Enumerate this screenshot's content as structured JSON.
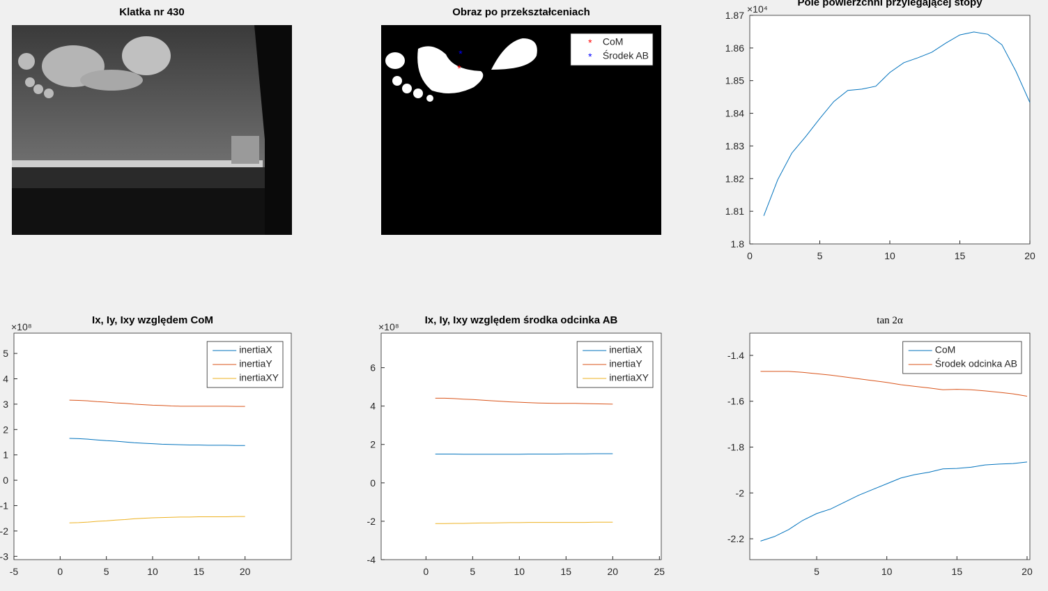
{
  "chart_data": [
    {
      "type": "image",
      "title": "Klatka nr 430"
    },
    {
      "type": "image",
      "title": "Obraz po przekształceniach",
      "legend": "northeast",
      "series": [
        {
          "name": "CoM",
          "color": "#ff0000"
        },
        {
          "name": "Środek AB",
          "color": "#0000ff"
        }
      ]
    },
    {
      "type": "line",
      "title": "Pole powierzchni przylegającej stopy",
      "y_exponent": "×10⁴",
      "x": [
        1,
        2,
        3,
        4,
        5,
        6,
        7,
        8,
        9,
        10,
        11,
        12,
        13,
        14,
        15,
        16,
        17,
        18,
        19,
        20
      ],
      "values": [
        1.8086,
        1.8197,
        1.8278,
        1.8329,
        1.8384,
        1.8436,
        1.847,
        1.8474,
        1.8483,
        1.8525,
        1.8555,
        1.857,
        1.8587,
        1.8615,
        1.864,
        1.8649,
        1.8642,
        1.861,
        1.8529,
        1.8433
      ],
      "color": "#0072bd",
      "xlim": [
        0,
        20
      ],
      "ylim": [
        1.8,
        1.87
      ],
      "xticks": [
        0,
        5,
        10,
        15,
        20
      ],
      "yticks": [
        1.8,
        1.81,
        1.82,
        1.83,
        1.84,
        1.85,
        1.86,
        1.87
      ]
    },
    {
      "type": "line",
      "title": "Ix, Iy, Ixy względem CoM",
      "y_exponent": "×10⁸",
      "legend": "northeast",
      "x": [
        1,
        2,
        3,
        4,
        5,
        6,
        7,
        8,
        9,
        10,
        11,
        12,
        13,
        14,
        15,
        16,
        17,
        18,
        19,
        20
      ],
      "series": [
        {
          "name": "inertiaX",
          "color": "#0072bd",
          "values": [
            1.65,
            1.64,
            1.62,
            1.59,
            1.56,
            1.54,
            1.51,
            1.48,
            1.46,
            1.44,
            1.42,
            1.41,
            1.4,
            1.39,
            1.39,
            1.38,
            1.38,
            1.38,
            1.37,
            1.37
          ]
        },
        {
          "name": "inertiaY",
          "color": "#d95319",
          "values": [
            3.16,
            3.15,
            3.13,
            3.1,
            3.08,
            3.05,
            3.03,
            3.0,
            2.98,
            2.96,
            2.95,
            2.93,
            2.92,
            2.92,
            2.92,
            2.92,
            2.92,
            2.92,
            2.91,
            2.91
          ]
        },
        {
          "name": "inertiaXY",
          "color": "#edb120",
          "values": [
            -1.68,
            -1.67,
            -1.65,
            -1.62,
            -1.6,
            -1.57,
            -1.55,
            -1.52,
            -1.5,
            -1.48,
            -1.47,
            -1.46,
            -1.45,
            -1.45,
            -1.44,
            -1.44,
            -1.44,
            -1.44,
            -1.43,
            -1.43
          ]
        }
      ],
      "xlim": [
        -5,
        25
      ],
      "ylim": [
        -3.13,
        5.8
      ],
      "xticks": [
        -5,
        0,
        5,
        10,
        15,
        20
      ],
      "yticks": [
        -3,
        -2,
        -1,
        0,
        1,
        2,
        3,
        4,
        5
      ]
    },
    {
      "type": "line",
      "title": "Ix, Iy, Ixy względem środka odcinka AB",
      "y_exponent": "×10⁸",
      "legend": "northeast",
      "x": [
        1,
        2,
        3,
        4,
        5,
        6,
        7,
        8,
        9,
        10,
        11,
        12,
        13,
        14,
        15,
        16,
        17,
        18,
        19,
        20
      ],
      "series": [
        {
          "name": "inertiaX",
          "color": "#0072bd",
          "values": [
            1.5,
            1.5,
            1.5,
            1.49,
            1.49,
            1.49,
            1.49,
            1.49,
            1.49,
            1.49,
            1.5,
            1.5,
            1.5,
            1.5,
            1.51,
            1.51,
            1.51,
            1.52,
            1.52,
            1.52
          ]
        },
        {
          "name": "inertiaY",
          "color": "#d95319",
          "values": [
            4.41,
            4.41,
            4.39,
            4.36,
            4.34,
            4.31,
            4.28,
            4.25,
            4.22,
            4.2,
            4.18,
            4.16,
            4.15,
            4.14,
            4.14,
            4.14,
            4.13,
            4.12,
            4.11,
            4.1
          ]
        },
        {
          "name": "inertiaXY",
          "color": "#edb120",
          "values": [
            -2.12,
            -2.12,
            -2.11,
            -2.11,
            -2.1,
            -2.09,
            -2.09,
            -2.08,
            -2.07,
            -2.07,
            -2.06,
            -2.06,
            -2.06,
            -2.06,
            -2.06,
            -2.06,
            -2.06,
            -2.05,
            -2.05,
            -2.05
          ]
        }
      ],
      "xlim": [
        -4.8,
        25.2
      ],
      "ylim": [
        -4,
        7.8
      ],
      "xticks": [
        0,
        5,
        10,
        15,
        20,
        25
      ],
      "yticks": [
        -4,
        -2,
        0,
        2,
        4,
        6
      ]
    },
    {
      "type": "line",
      "title": "tan 2α",
      "legend": "northeast",
      "x": [
        1,
        2,
        3,
        4,
        5,
        6,
        7,
        8,
        9,
        10,
        11,
        12,
        13,
        14,
        15,
        16,
        17,
        18,
        19,
        20
      ],
      "series": [
        {
          "name": "CoM",
          "color": "#0072bd",
          "values": [
            -2.21,
            -2.19,
            -2.16,
            -2.12,
            -2.09,
            -2.07,
            -2.04,
            -2.01,
            -1.985,
            -1.96,
            -1.935,
            -1.92,
            -1.91,
            -1.895,
            -1.893,
            -1.888,
            -1.878,
            -1.874,
            -1.872,
            -1.865
          ]
        },
        {
          "name": "Środek odcinka AB",
          "color": "#d95319",
          "values": [
            -1.47,
            -1.47,
            -1.47,
            -1.474,
            -1.48,
            -1.486,
            -1.494,
            -1.502,
            -1.51,
            -1.518,
            -1.528,
            -1.535,
            -1.542,
            -1.55,
            -1.548,
            -1.55,
            -1.555,
            -1.561,
            -1.568,
            -1.578
          ]
        }
      ],
      "xlim": [
        0.23,
        20.2
      ],
      "ylim": [
        -2.291,
        -1.303
      ],
      "xticks": [
        5,
        10,
        15,
        20
      ],
      "yticks": [
        -2.2,
        -2,
        -1.8,
        -1.6,
        -1.4
      ]
    }
  ]
}
